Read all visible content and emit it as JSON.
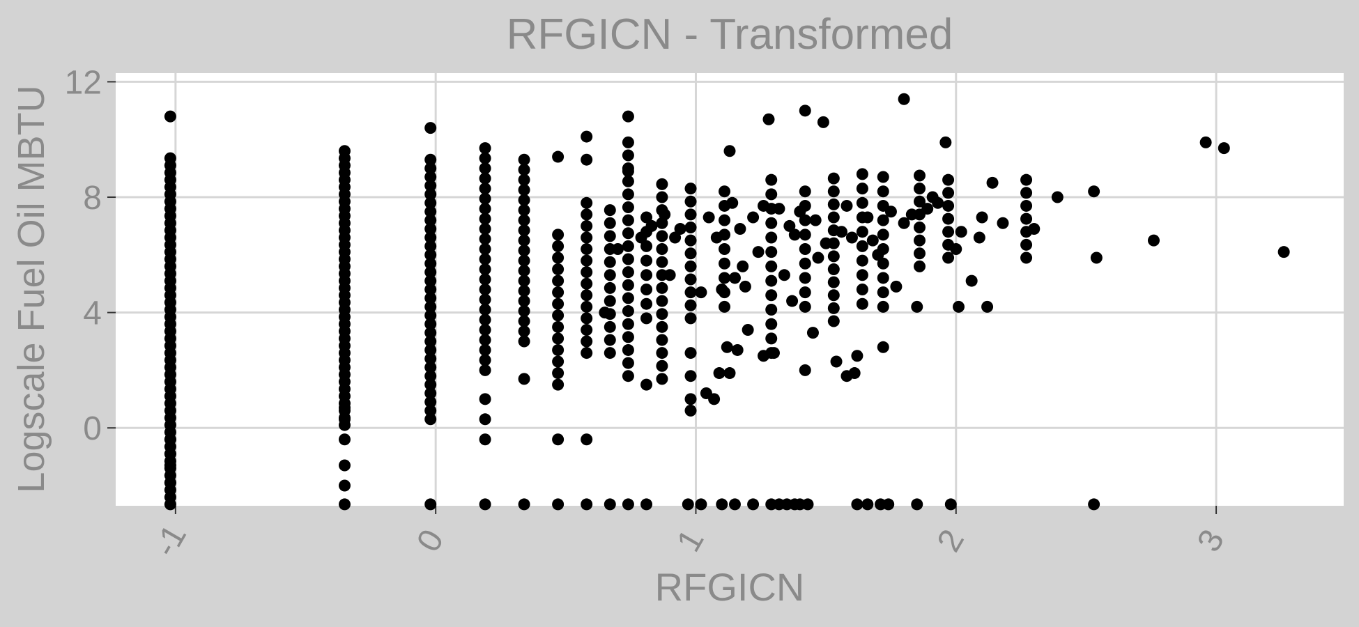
{
  "chart_data": {
    "type": "scatter",
    "title": "RFGICN - Transformed",
    "xlabel": "RFGICN",
    "ylabel": "Logscale Fuel Oil MBTU",
    "xlim": [
      -1.23,
      3.49
    ],
    "ylim": [
      -2.7,
      12.3
    ],
    "x_ticks": [
      -1,
      0,
      1,
      2,
      3
    ],
    "x_tick_labels": [
      "-1",
      "0",
      "1",
      "2",
      "3"
    ],
    "y_ticks": [
      0,
      4,
      8,
      12
    ],
    "y_tick_labels": [
      "0",
      "4",
      "8",
      "12"
    ],
    "grid": true,
    "legend": "none",
    "colors": {
      "page_background": "#d3d3d3",
      "panel_background": "#ffffff",
      "grid": "#d6d6d6",
      "points": "#000000",
      "text": "#8a8a8a"
    },
    "point_clusters": [
      {
        "x": -1.02,
        "y_from": -2.65,
        "y_to": 9.4,
        "step": 0.25
      },
      {
        "x": -0.35,
        "y_from": 0.1,
        "y_to": 9.8,
        "step": 0.25
      },
      {
        "x": -0.02,
        "y_from": 0.3,
        "y_to": 9.3,
        "step": 0.3
      },
      {
        "x": 0.19,
        "y_from": 2.0,
        "y_to": 9.8,
        "step": 0.35
      },
      {
        "x": 0.34,
        "y_from": 3.0,
        "y_to": 9.3,
        "step": 0.35
      },
      {
        "x": 0.47,
        "y_from": 1.5,
        "y_to": 6.9,
        "step": 0.4
      },
      {
        "x": 0.58,
        "y_from": 2.6,
        "y_to": 8.0,
        "step": 0.4
      },
      {
        "x": 0.67,
        "y_from": 2.6,
        "y_to": 7.8,
        "step": 0.45
      },
      {
        "x": 0.74,
        "y_from": 1.8,
        "y_to": 9.9,
        "step": 0.45
      },
      {
        "x": 0.81,
        "y_from": 3.8,
        "y_to": 7.6,
        "step": 0.5
      },
      {
        "x": 0.87,
        "y_from": 1.7,
        "y_to": 8.6,
        "step": 0.45
      },
      {
        "x": 0.98,
        "y_from": 3.8,
        "y_to": 8.6,
        "step": 0.45
      },
      {
        "x": 1.11,
        "y_from": 4.2,
        "y_to": 8.2,
        "step": 0.5
      },
      {
        "x": 1.29,
        "y_from": 2.6,
        "y_to": 9.0,
        "step": 0.5
      },
      {
        "x": 1.42,
        "y_from": 4.2,
        "y_to": 8.4,
        "step": 0.5
      },
      {
        "x": 1.53,
        "y_from": 3.7,
        "y_to": 8.9,
        "step": 0.45
      },
      {
        "x": 1.64,
        "y_from": 4.3,
        "y_to": 8.9,
        "step": 0.5
      },
      {
        "x": 1.72,
        "y_from": 4.2,
        "y_to": 9.0,
        "step": 0.5
      },
      {
        "x": 1.86,
        "y_from": 5.6,
        "y_to": 9.0,
        "step": 0.45
      },
      {
        "x": 1.97,
        "y_from": 5.9,
        "y_to": 8.6,
        "step": 0.45
      },
      {
        "x": 2.27,
        "y_from": 5.9,
        "y_to": 8.8,
        "step": 0.45
      }
    ],
    "points": [
      {
        "x": -1.02,
        "y": 10.8
      },
      {
        "x": -1.02,
        "y": -0.4
      },
      {
        "x": -1.02,
        "y": -0.9
      },
      {
        "x": -1.02,
        "y": -1.3
      },
      {
        "x": -1.02,
        "y": -1.9
      },
      {
        "x": -0.35,
        "y": 0.7
      },
      {
        "x": -0.35,
        "y": 0.3
      },
      {
        "x": -0.35,
        "y": -0.4
      },
      {
        "x": -0.35,
        "y": -1.3
      },
      {
        "x": -0.35,
        "y": -2.0
      },
      {
        "x": -0.02,
        "y": 10.4
      },
      {
        "x": 0.19,
        "y": 1.0
      },
      {
        "x": 0.19,
        "y": 0.3
      },
      {
        "x": 0.19,
        "y": -0.4
      },
      {
        "x": 0.34,
        "y": 1.7
      },
      {
        "x": 0.47,
        "y": 9.4
      },
      {
        "x": 0.47,
        "y": -0.4
      },
      {
        "x": 0.58,
        "y": 10.1
      },
      {
        "x": 0.58,
        "y": 9.3
      },
      {
        "x": 0.58,
        "y": -0.4
      },
      {
        "x": 0.74,
        "y": 10.8
      },
      {
        "x": 0.74,
        "y": 8.9
      },
      {
        "x": 0.81,
        "y": 1.5
      },
      {
        "x": 0.98,
        "y": 2.6
      },
      {
        "x": 0.98,
        "y": 1.8
      },
      {
        "x": 0.98,
        "y": 1.0
      },
      {
        "x": 0.98,
        "y": 0.6
      },
      {
        "x": 1.04,
        "y": 1.2
      },
      {
        "x": 1.07,
        "y": 1.0
      },
      {
        "x": 1.09,
        "y": 1.9
      },
      {
        "x": 1.13,
        "y": 1.9
      },
      {
        "x": 1.13,
        "y": 9.6
      },
      {
        "x": 1.28,
        "y": 10.7
      },
      {
        "x": 1.42,
        "y": 11.0
      },
      {
        "x": 1.49,
        "y": 10.6
      },
      {
        "x": 1.8,
        "y": 11.4
      },
      {
        "x": 1.96,
        "y": 9.9
      },
      {
        "x": 1.42,
        "y": 2.0
      },
      {
        "x": 1.54,
        "y": 2.3
      },
      {
        "x": 1.58,
        "y": 1.8
      },
      {
        "x": 1.61,
        "y": 1.9
      },
      {
        "x": 1.62,
        "y": 2.5
      },
      {
        "x": 1.72,
        "y": 2.8
      },
      {
        "x": 1.12,
        "y": 2.8
      },
      {
        "x": 1.16,
        "y": 2.7
      },
      {
        "x": 1.2,
        "y": 3.4
      },
      {
        "x": 1.45,
        "y": 3.3
      },
      {
        "x": 1.26,
        "y": 2.5
      },
      {
        "x": 1.3,
        "y": 2.6
      },
      {
        "x": 1.37,
        "y": 4.4
      },
      {
        "x": 1.1,
        "y": 4.8
      },
      {
        "x": 1.15,
        "y": 5.2
      },
      {
        "x": 1.19,
        "y": 4.9
      },
      {
        "x": 1.24,
        "y": 6.1
      },
      {
        "x": 1.34,
        "y": 5.3
      },
      {
        "x": 1.36,
        "y": 7.0
      },
      {
        "x": 1.47,
        "y": 5.9
      },
      {
        "x": 1.5,
        "y": 6.4
      },
      {
        "x": 1.58,
        "y": 7.7
      },
      {
        "x": 1.6,
        "y": 6.6
      },
      {
        "x": 1.68,
        "y": 6.5
      },
      {
        "x": 1.77,
        "y": 4.9
      },
      {
        "x": 1.8,
        "y": 7.1
      },
      {
        "x": 1.83,
        "y": 7.4
      },
      {
        "x": 1.85,
        "y": 4.2
      },
      {
        "x": 1.89,
        "y": 7.6
      },
      {
        "x": 1.91,
        "y": 8.0
      },
      {
        "x": 1.93,
        "y": 7.8
      },
      {
        "x": 2.0,
        "y": 6.2
      },
      {
        "x": 2.01,
        "y": 4.2
      },
      {
        "x": 2.02,
        "y": 6.8
      },
      {
        "x": 2.06,
        "y": 5.1
      },
      {
        "x": 2.09,
        "y": 6.6
      },
      {
        "x": 2.1,
        "y": 7.3
      },
      {
        "x": 2.12,
        "y": 4.2
      },
      {
        "x": 2.14,
        "y": 8.5
      },
      {
        "x": 2.18,
        "y": 7.1
      },
      {
        "x": 2.3,
        "y": 6.9
      },
      {
        "x": 2.39,
        "y": 8.0
      },
      {
        "x": 2.53,
        "y": 8.2
      },
      {
        "x": 2.54,
        "y": 5.9
      },
      {
        "x": 2.76,
        "y": 6.5
      },
      {
        "x": 2.96,
        "y": 9.9
      },
      {
        "x": 3.03,
        "y": 9.7
      },
      {
        "x": 3.26,
        "y": 6.1
      },
      {
        "x": 0.9,
        "y": 5.3
      },
      {
        "x": 0.92,
        "y": 6.6
      },
      {
        "x": 0.94,
        "y": 6.9
      },
      {
        "x": 1.02,
        "y": 4.7
      },
      {
        "x": 1.05,
        "y": 7.3
      },
      {
        "x": 1.08,
        "y": 6.6
      },
      {
        "x": 1.14,
        "y": 7.8
      },
      {
        "x": 1.17,
        "y": 6.9
      },
      {
        "x": 1.22,
        "y": 7.3
      },
      {
        "x": 1.26,
        "y": 7.7
      },
      {
        "x": 1.32,
        "y": 7.6
      },
      {
        "x": 1.38,
        "y": 6.7
      },
      {
        "x": 1.4,
        "y": 7.5
      },
      {
        "x": 1.46,
        "y": 7.2
      },
      {
        "x": 1.56,
        "y": 6.8
      },
      {
        "x": 1.66,
        "y": 7.3
      },
      {
        "x": 1.7,
        "y": 6.0
      },
      {
        "x": 1.75,
        "y": 7.5
      },
      {
        "x": 0.65,
        "y": 4.0
      },
      {
        "x": 0.7,
        "y": 6.2
      },
      {
        "x": 0.79,
        "y": 6.6
      },
      {
        "x": 0.83,
        "y": 7.0
      },
      {
        "x": 0.88,
        "y": 7.4
      },
      {
        "x": 1.18,
        "y": 5.6
      },
      {
        "x": 0.47,
        "y": -2.65
      },
      {
        "x": 0.58,
        "y": -2.65
      },
      {
        "x": 0.67,
        "y": -2.65
      },
      {
        "x": 0.74,
        "y": -2.65
      },
      {
        "x": 0.81,
        "y": -2.65
      },
      {
        "x": -0.02,
        "y": -2.65
      },
      {
        "x": 0.19,
        "y": -2.65
      },
      {
        "x": 0.34,
        "y": -2.65
      },
      {
        "x": 0.97,
        "y": -2.65
      },
      {
        "x": 1.02,
        "y": -2.65
      },
      {
        "x": 1.1,
        "y": -2.65
      },
      {
        "x": 1.15,
        "y": -2.65
      },
      {
        "x": 1.22,
        "y": -2.65
      },
      {
        "x": 1.29,
        "y": -2.65
      },
      {
        "x": 1.32,
        "y": -2.65
      },
      {
        "x": 1.35,
        "y": -2.65
      },
      {
        "x": 1.38,
        "y": -2.65
      },
      {
        "x": 1.4,
        "y": -2.65
      },
      {
        "x": 1.43,
        "y": -2.65
      },
      {
        "x": 1.62,
        "y": -2.65
      },
      {
        "x": 1.66,
        "y": -2.65
      },
      {
        "x": 1.71,
        "y": -2.65
      },
      {
        "x": 1.74,
        "y": -2.65
      },
      {
        "x": 1.85,
        "y": -2.65
      },
      {
        "x": 1.98,
        "y": -2.65
      },
      {
        "x": 2.53,
        "y": -2.65
      },
      {
        "x": -0.35,
        "y": -2.65
      }
    ]
  }
}
